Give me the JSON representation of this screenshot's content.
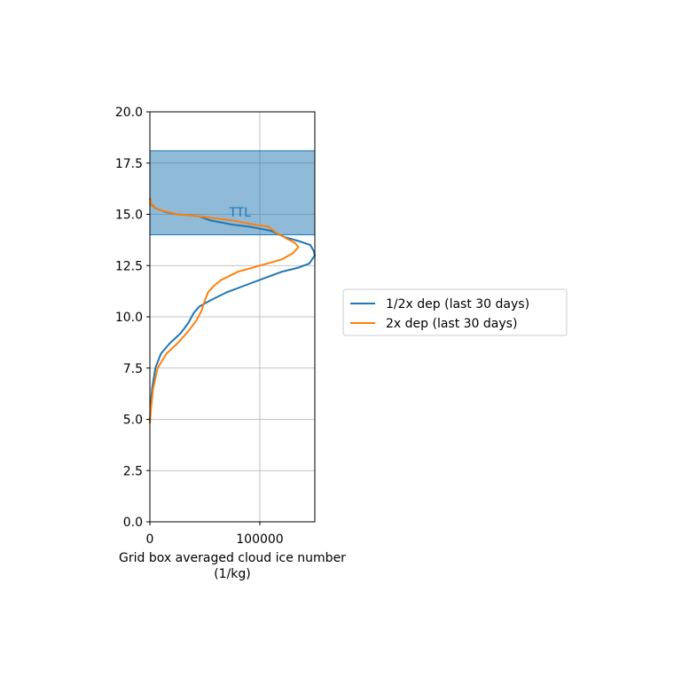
{
  "chart_data": {
    "type": "line",
    "xlabel_line1": "Grid box averaged cloud ice number",
    "xlabel_line2": "(1/kg)",
    "ylabel": "",
    "xlim": [
      0,
      150000
    ],
    "ylim": [
      0,
      20
    ],
    "x_ticks": [
      0,
      100000
    ],
    "x_tick_labels": [
      "0",
      "100000"
    ],
    "y_ticks": [
      0,
      2.5,
      5,
      7.5,
      10,
      12.5,
      15,
      17.5,
      20
    ],
    "y_tick_labels": [
      "0.0",
      "2.5",
      "5.0",
      "7.5",
      "10.0",
      "12.5",
      "15.0",
      "17.5",
      "20.0"
    ],
    "grid": true,
    "legend_placement": "outside right",
    "shaded_band": {
      "y_range": [
        14.0,
        18.1
      ],
      "label": "TTL",
      "color": "#1f77b4",
      "opacity": 0.5
    },
    "series": [
      {
        "name": "1/2x dep (last 30 days)",
        "color": "#1f77b4",
        "points": [
          [
            0,
            4.8
          ],
          [
            500,
            5.5
          ],
          [
            2000,
            6.5
          ],
          [
            5000,
            7.5
          ],
          [
            10000,
            8.2
          ],
          [
            18000,
            8.7
          ],
          [
            28000,
            9.2
          ],
          [
            35000,
            9.7
          ],
          [
            40000,
            10.2
          ],
          [
            45000,
            10.5
          ],
          [
            55000,
            10.8
          ],
          [
            70000,
            11.2
          ],
          [
            90000,
            11.6
          ],
          [
            105000,
            11.9
          ],
          [
            120000,
            12.2
          ],
          [
            135000,
            12.4
          ],
          [
            145000,
            12.6
          ],
          [
            150000,
            13.0
          ],
          [
            149000,
            13.2
          ],
          [
            146000,
            13.5
          ],
          [
            135000,
            13.7
          ],
          [
            122000,
            13.9
          ],
          [
            110000,
            14.2
          ],
          [
            100000,
            14.3
          ],
          [
            90000,
            14.4
          ],
          [
            75000,
            14.5
          ],
          [
            55000,
            14.7
          ],
          [
            45000,
            14.9
          ],
          [
            25000,
            15.0
          ],
          [
            15000,
            15.1
          ],
          [
            5000,
            15.3
          ],
          [
            1000,
            15.5
          ],
          [
            0,
            15.8
          ]
        ]
      },
      {
        "name": "2x dep (last 30 days)",
        "color": "#ff7f0e",
        "points": [
          [
            0,
            4.8
          ],
          [
            1000,
            5.5
          ],
          [
            3000,
            6.5
          ],
          [
            7000,
            7.5
          ],
          [
            15000,
            8.2
          ],
          [
            25000,
            8.7
          ],
          [
            35000,
            9.3
          ],
          [
            42000,
            9.8
          ],
          [
            47000,
            10.3
          ],
          [
            50000,
            10.8
          ],
          [
            53000,
            11.2
          ],
          [
            58000,
            11.5
          ],
          [
            65000,
            11.8
          ],
          [
            80000,
            12.2
          ],
          [
            100000,
            12.5
          ],
          [
            120000,
            12.8
          ],
          [
            130000,
            13.1
          ],
          [
            135000,
            13.4
          ],
          [
            132000,
            13.6
          ],
          [
            125000,
            13.8
          ],
          [
            115000,
            14.1
          ],
          [
            108000,
            14.4
          ],
          [
            95000,
            14.5
          ],
          [
            75000,
            14.7
          ],
          [
            45000,
            14.9
          ],
          [
            25000,
            15.0
          ],
          [
            10000,
            15.2
          ],
          [
            2000,
            15.4
          ],
          [
            0,
            15.8
          ]
        ]
      }
    ]
  }
}
